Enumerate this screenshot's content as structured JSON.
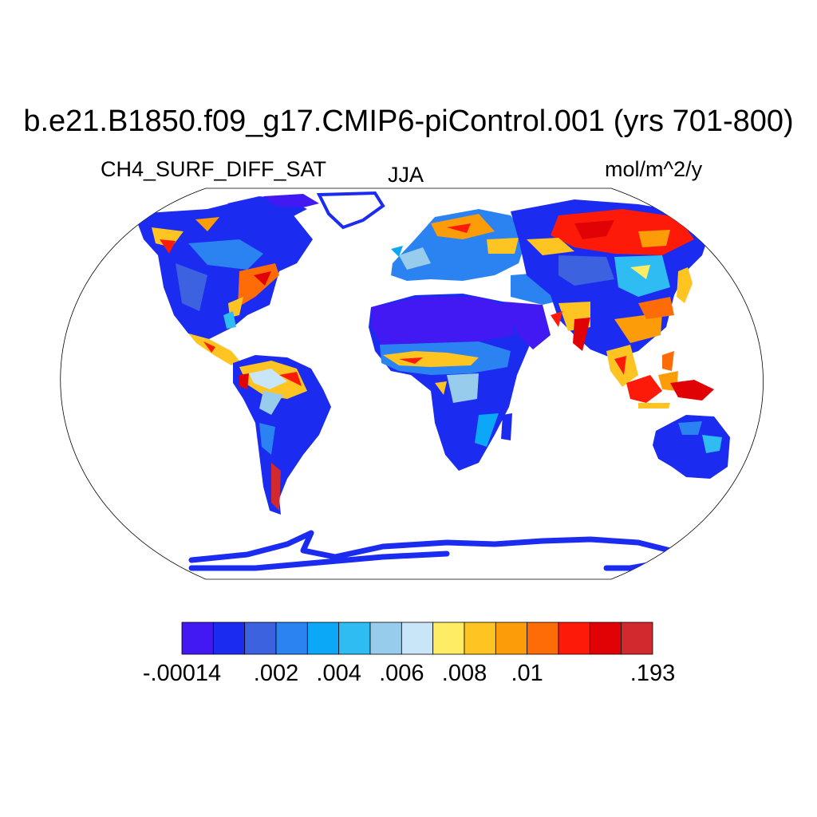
{
  "title": "b.e21.B1850.f09_g17.CMIP6-piControl.001 (yrs 701-800)",
  "variable": "CH4_SURF_DIFF_SAT",
  "season": "JJA",
  "units": "mol/m^2/y",
  "projection": "robinson",
  "colorbar": {
    "colors": [
      "#4219f2",
      "#1b2cf0",
      "#3d62df",
      "#2b83f2",
      "#0aa8f6",
      "#2fbcf2",
      "#97ccec",
      "#c9e5f8",
      "#fdec64",
      "#fdc422",
      "#fc9c08",
      "#fd6c06",
      "#fd1a08",
      "#e10206",
      "#d2292e"
    ],
    "tick_labels": [
      {
        "text": "-.00014",
        "boundary": 0
      },
      {
        "text": ".002",
        "boundary": 3
      },
      {
        "text": ".004",
        "boundary": 5
      },
      {
        "text": ".006",
        "boundary": 7
      },
      {
        "text": ".008",
        "boundary": 9
      },
      {
        "text": ".01",
        "boundary": 11
      },
      {
        "text": ".193",
        "boundary": 15
      }
    ]
  }
}
